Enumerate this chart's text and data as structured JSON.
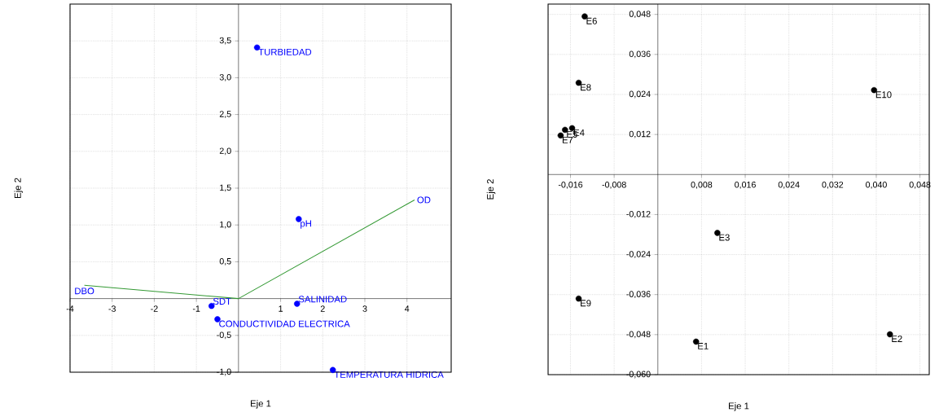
{
  "chart_data": [
    {
      "type": "scatter",
      "xlabel": "Eje 1",
      "ylabel": "Eje 2",
      "xlim": [
        -4,
        5.05
      ],
      "ylim": [
        -1,
        4
      ],
      "xticks": [
        -4,
        -3,
        -2,
        -1,
        1,
        2,
        3,
        4
      ],
      "yticks": [
        {
          "value": -1,
          "label": "-1,0"
        },
        {
          "value": -0.5,
          "label": "-0,5"
        },
        {
          "value": 0.5,
          "label": "0,5"
        },
        {
          "value": 1,
          "label": "1,0"
        },
        {
          "value": 1.5,
          "label": "1,5"
        },
        {
          "value": 2,
          "label": "2,0"
        },
        {
          "value": 2.5,
          "label": "2,5"
        },
        {
          "value": 3,
          "label": "3,0"
        },
        {
          "value": 3.5,
          "label": "3,5"
        }
      ],
      "grid": true,
      "marker": "circle",
      "series": [
        {
          "name": "TURBIEDAD",
          "color": "#0000ff",
          "x": [
            0.44
          ],
          "values": [
            3.41
          ]
        },
        {
          "name": "pH",
          "color": "#0000ff",
          "x": [
            1.43
          ],
          "values": [
            1.08
          ]
        },
        {
          "name": "SALINIDAD",
          "color": "#0000ff",
          "x": [
            1.39
          ],
          "values": [
            -0.07
          ]
        },
        {
          "name": "SDT",
          "color": "#0000ff",
          "x": [
            -0.64
          ],
          "values": [
            -0.1
          ]
        },
        {
          "name": "CONDUCTIVIDAD ELECTRICA",
          "color": "#0000ff",
          "x": [
            -0.5
          ],
          "values": [
            -0.28
          ]
        },
        {
          "name": "TEMPERATURA HIDRICA",
          "color": "#0000ff",
          "x": [
            2.24
          ],
          "values": [
            -0.97
          ]
        },
        {
          "name": "DBO",
          "type": "line",
          "marker": "none",
          "color": "#339933",
          "x": [
            0,
            -3.66
          ],
          "values": [
            0,
            0.18
          ]
        },
        {
          "name": "OD",
          "type": "line",
          "marker": "none",
          "color": "#339933",
          "x": [
            0,
            4.18
          ],
          "values": [
            0,
            1.34
          ]
        }
      ]
    },
    {
      "type": "scatter",
      "xlabel": "Eje 1",
      "ylabel": "Eje 2",
      "xlim": [
        -0.0201,
        0.0497
      ],
      "ylim": [
        -0.06,
        0.0511
      ],
      "xticks": [
        {
          "value": -0.016,
          "label": "-0,016"
        },
        {
          "value": -0.008,
          "label": "-0,008"
        },
        {
          "value": 0.008,
          "label": "0,008"
        },
        {
          "value": 0.016,
          "label": "0,016"
        },
        {
          "value": 0.024,
          "label": "0,024"
        },
        {
          "value": 0.032,
          "label": "0,032"
        },
        {
          "value": 0.04,
          "label": "0,040"
        },
        {
          "value": 0.048,
          "label": "0,048"
        }
      ],
      "yticks": [
        {
          "value": -0.06,
          "label": "-0,060"
        },
        {
          "value": -0.048,
          "label": "-0,048"
        },
        {
          "value": -0.036,
          "label": "-0,036"
        },
        {
          "value": -0.024,
          "label": "-0,024"
        },
        {
          "value": -0.012,
          "label": "-0,012"
        },
        {
          "value": 0.012,
          "label": "0,012"
        },
        {
          "value": 0.024,
          "label": "0,024"
        },
        {
          "value": 0.036,
          "label": "0,036"
        },
        {
          "value": 0.048,
          "label": "0,048"
        }
      ],
      "grid": true,
      "marker": "circle",
      "series": [
        {
          "name": "E1",
          "color": "#000000",
          "x": [
            0.007
          ],
          "values": [
            -0.0501
          ]
        },
        {
          "name": "E2",
          "color": "#000000",
          "x": [
            0.0425
          ],
          "values": [
            -0.0479
          ]
        },
        {
          "name": "E3",
          "color": "#000000",
          "x": [
            0.0109
          ],
          "values": [
            -0.0175
          ]
        },
        {
          "name": "E4",
          "color": "#000000",
          "x": [
            -0.0157
          ],
          "values": [
            0.0139
          ]
        },
        {
          "name": "E5",
          "color": "#000000",
          "x": [
            -0.017
          ],
          "values": [
            0.0134
          ]
        },
        {
          "name": "E6",
          "color": "#000000",
          "x": [
            -0.0134
          ],
          "values": [
            0.0474
          ]
        },
        {
          "name": "E7",
          "color": "#000000",
          "x": [
            -0.0178
          ],
          "values": [
            0.0117
          ]
        },
        {
          "name": "E8",
          "color": "#000000",
          "x": [
            -0.0145
          ],
          "values": [
            0.0275
          ]
        },
        {
          "name": "E9",
          "color": "#000000",
          "x": [
            -0.0145
          ],
          "values": [
            -0.0372
          ]
        },
        {
          "name": "E10",
          "color": "#000000",
          "x": [
            0.0396
          ],
          "values": [
            0.0253
          ]
        }
      ]
    }
  ]
}
